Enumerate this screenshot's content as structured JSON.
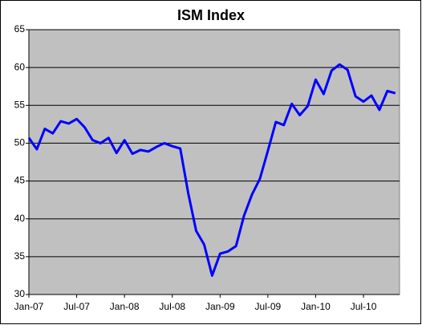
{
  "chart_data": {
    "type": "line",
    "title": "ISM Index",
    "categories": [
      "Jan-07",
      null,
      null,
      null,
      null,
      null,
      "Jul-07",
      null,
      null,
      null,
      null,
      null,
      "Jan-08",
      null,
      null,
      null,
      null,
      null,
      "Jul-08",
      null,
      null,
      null,
      null,
      null,
      "Jan-09",
      null,
      null,
      null,
      null,
      null,
      "Jul-09",
      null,
      null,
      null,
      null,
      null,
      "Jan-10",
      null,
      null,
      null,
      null,
      null,
      "Jul-10",
      null,
      null,
      null,
      null
    ],
    "values": [
      50.7,
      49.2,
      51.9,
      51.3,
      52.9,
      52.6,
      53.2,
      52.1,
      50.4,
      50.0,
      50.7,
      48.7,
      50.4,
      48.6,
      49.1,
      48.9,
      49.5,
      50.0,
      49.6,
      49.3,
      43.4,
      38.4,
      36.6,
      32.5,
      35.4,
      35.7,
      36.4,
      40.4,
      43.2,
      45.3,
      49.0,
      52.8,
      52.4,
      55.2,
      53.7,
      54.9,
      58.4,
      56.5,
      59.6,
      60.4,
      59.7,
      56.2,
      55.5,
      56.3,
      54.4,
      56.9,
      56.6
    ],
    "color": "#0000ff",
    "ylim": [
      30,
      65
    ],
    "yticks": [
      30,
      35,
      40,
      45,
      50,
      55,
      60,
      65
    ],
    "grid": true,
    "plot_background": "#c0c0c0"
  }
}
